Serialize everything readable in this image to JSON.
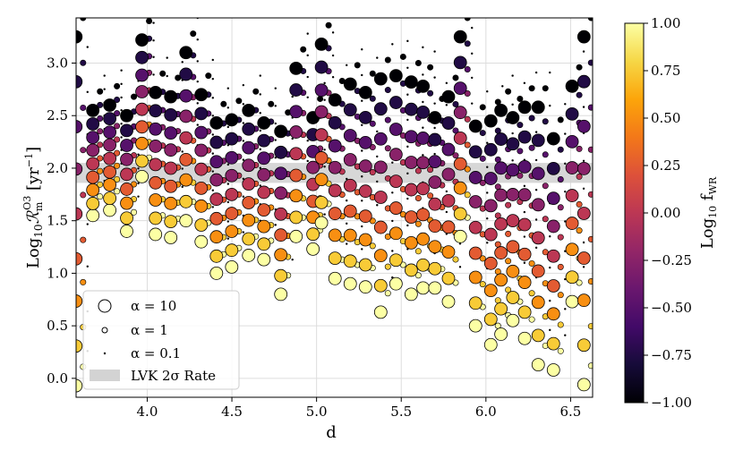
{
  "chart_data": {
    "type": "scatter",
    "xlabel": "d",
    "ylabel": "Log10 R_m^O3 [yr^-1]",
    "ylabel_parts": {
      "pre": "Log",
      "sub1": "10",
      "script": "ℛ",
      "sub2": "m",
      "sup": "O3",
      "unit_open": " [yr",
      "unit_sup": "−1",
      "unit_close": "]"
    },
    "xlim": [
      3.58,
      6.63
    ],
    "ylim": [
      -0.18,
      3.43
    ],
    "x_ticks": [
      4.0,
      4.5,
      5.0,
      5.5,
      6.0,
      6.5
    ],
    "x_tick_labels": [
      "4.0",
      "4.5",
      "5.0",
      "5.5",
      "6.0",
      "6.5"
    ],
    "y_ticks": [
      0.0,
      0.5,
      1.0,
      1.5,
      2.0,
      2.5,
      3.0
    ],
    "y_tick_labels": [
      "0.0",
      "0.5",
      "1.0",
      "1.5",
      "2.0",
      "2.5",
      "3.0"
    ],
    "grid": true,
    "lvk_band": {
      "ymin": 1.86,
      "ymax": 2.05,
      "color": "#d3d3d3"
    },
    "colorbar": {
      "label": "Log10 f_WR",
      "label_parts": {
        "pre": "Log",
        "sub1": "10",
        "mid": " f",
        "sub2": "WR"
      },
      "range": [
        -1.0,
        1.0
      ],
      "colormap": "inferno",
      "ticks": [
        1.0,
        0.75,
        0.5,
        0.25,
        0.0,
        -0.25,
        -0.5,
        -0.75,
        -1.0
      ],
      "tick_labels": [
        "1.00",
        "0.75",
        "0.50",
        "0.25",
        "0.00",
        "−0.25",
        "−0.50",
        "−0.75",
        "−1.00"
      ]
    },
    "legend": {
      "position": "lower-left",
      "entries": [
        {
          "label": "α = 10",
          "marker": "large-circle"
        },
        {
          "label": "α = 1",
          "marker": "small-circle"
        },
        {
          "label": "α = 0.1",
          "marker": "dot"
        },
        {
          "label": "LVK 2σ Rate",
          "marker": "band"
        }
      ]
    },
    "marker_sizes": {
      "alpha_10": 7,
      "alpha_1": 3.2,
      "alpha_0_1": 1.2
    },
    "f_wr_levels": [
      -1.0,
      -0.75,
      -0.5,
      -0.25,
      0.0,
      0.25,
      0.5,
      0.75,
      1.0
    ],
    "level_offsets": [
      0.0,
      -0.17,
      -0.34,
      -0.5,
      -0.67,
      -0.84,
      -1.0,
      -1.17,
      -1.32
    ],
    "group_columns": [
      {
        "x": 3.6,
        "top": 3.25,
        "drop": 3.32
      },
      {
        "x": 3.7,
        "top": 2.55,
        "drop": 1.0
      },
      {
        "x": 3.8,
        "top": 2.6,
        "drop": 1.0
      },
      {
        "x": 3.9,
        "top": 2.5,
        "drop": 1.1
      },
      {
        "x": 3.99,
        "top": 3.22,
        "drop": 1.3
      },
      {
        "x": 4.07,
        "top": 2.72,
        "drop": 1.35
      },
      {
        "x": 4.16,
        "top": 2.68,
        "drop": 1.34
      },
      {
        "x": 4.25,
        "top": 3.1,
        "drop": 1.6
      },
      {
        "x": 4.34,
        "top": 2.7,
        "drop": 1.4
      },
      {
        "x": 4.43,
        "top": 2.43,
        "drop": 1.43
      },
      {
        "x": 4.52,
        "top": 2.46,
        "drop": 1.4
      },
      {
        "x": 4.62,
        "top": 2.55,
        "drop": 1.38
      },
      {
        "x": 4.71,
        "top": 2.43,
        "drop": 1.3
      },
      {
        "x": 4.81,
        "top": 2.35,
        "drop": 1.55
      },
      {
        "x": 4.9,
        "top": 2.95,
        "drop": 1.6
      },
      {
        "x": 5.0,
        "top": 2.48,
        "drop": 1.25
      },
      {
        "x": 5.05,
        "top": 3.18,
        "drop": 1.7
      },
      {
        "x": 5.13,
        "top": 2.65,
        "drop": 1.7
      },
      {
        "x": 5.22,
        "top": 2.8,
        "drop": 1.9
      },
      {
        "x": 5.31,
        "top": 2.72,
        "drop": 1.85
      },
      {
        "x": 5.4,
        "top": 2.85,
        "drop": 2.22
      },
      {
        "x": 5.49,
        "top": 2.88,
        "drop": 1.98
      },
      {
        "x": 5.58,
        "top": 2.82,
        "drop": 2.02
      },
      {
        "x": 5.65,
        "top": 2.78,
        "drop": 1.92
      },
      {
        "x": 5.72,
        "top": 2.48,
        "drop": 1.62
      },
      {
        "x": 5.8,
        "top": 2.68,
        "drop": 1.95
      },
      {
        "x": 5.87,
        "top": 3.25,
        "drop": 1.9
      },
      {
        "x": 5.96,
        "top": 2.4,
        "drop": 1.9
      },
      {
        "x": 6.05,
        "top": 2.45,
        "drop": 2.13
      },
      {
        "x": 6.11,
        "top": 2.55,
        "drop": 2.13
      },
      {
        "x": 6.18,
        "top": 2.48,
        "drop": 1.93
      },
      {
        "x": 6.25,
        "top": 2.58,
        "drop": 2.2
      },
      {
        "x": 6.33,
        "top": 2.58,
        "drop": 2.45
      },
      {
        "x": 6.42,
        "top": 2.28,
        "drop": 2.2
      },
      {
        "x": 6.53,
        "top": 2.78,
        "drop": 2.05
      },
      {
        "x": 6.6,
        "top": 3.25,
        "drop": 3.31
      }
    ]
  }
}
